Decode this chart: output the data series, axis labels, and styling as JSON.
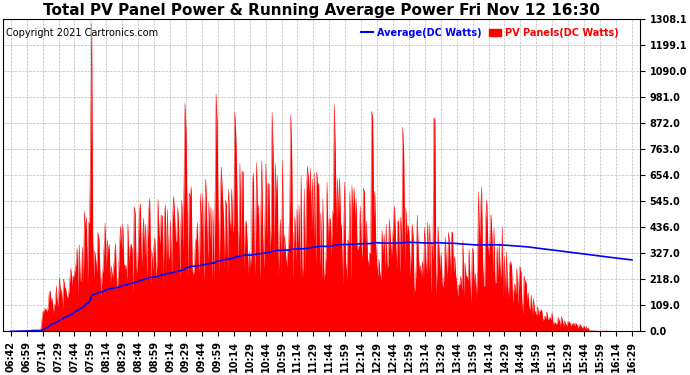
{
  "title": "Total PV Panel Power & Running Average Power Fri Nov 12 16:30",
  "copyright": "Copyright 2021 Cartronics.com",
  "legend_avg": "Average(DC Watts)",
  "legend_pv": "PV Panels(DC Watts)",
  "ymin": 0.0,
  "ymax": 1308.1,
  "yticks": [
    0.0,
    109.0,
    218.0,
    327.0,
    436.0,
    545.0,
    654.0,
    763.0,
    872.0,
    981.0,
    1090.0,
    1199.1,
    1308.1
  ],
  "ytick_labels": [
    "0.0",
    "109.0",
    "218.0",
    "327.0",
    "436.0",
    "545.0",
    "654.0",
    "763.0",
    "872.0",
    "981.0",
    "1090.0",
    "1199.1",
    "1308.1"
  ],
  "xtick_labels": [
    "06:42",
    "06:59",
    "07:14",
    "07:29",
    "07:44",
    "07:59",
    "08:14",
    "08:29",
    "08:44",
    "08:59",
    "09:14",
    "09:29",
    "09:44",
    "09:59",
    "10:14",
    "10:29",
    "10:44",
    "10:59",
    "11:14",
    "11:29",
    "11:44",
    "11:59",
    "12:14",
    "12:29",
    "12:44",
    "12:59",
    "13:14",
    "13:29",
    "13:44",
    "13:59",
    "14:14",
    "14:29",
    "14:44",
    "14:59",
    "15:14",
    "15:29",
    "15:44",
    "15:59",
    "16:14",
    "16:29"
  ],
  "pv_color": "#FF0000",
  "avg_color": "#0000FF",
  "bg_color": "#FFFFFF",
  "grid_color": "#AAAAAA",
  "title_color": "#000000",
  "title_fontsize": 11,
  "axis_fontsize": 7,
  "copyright_fontsize": 7
}
